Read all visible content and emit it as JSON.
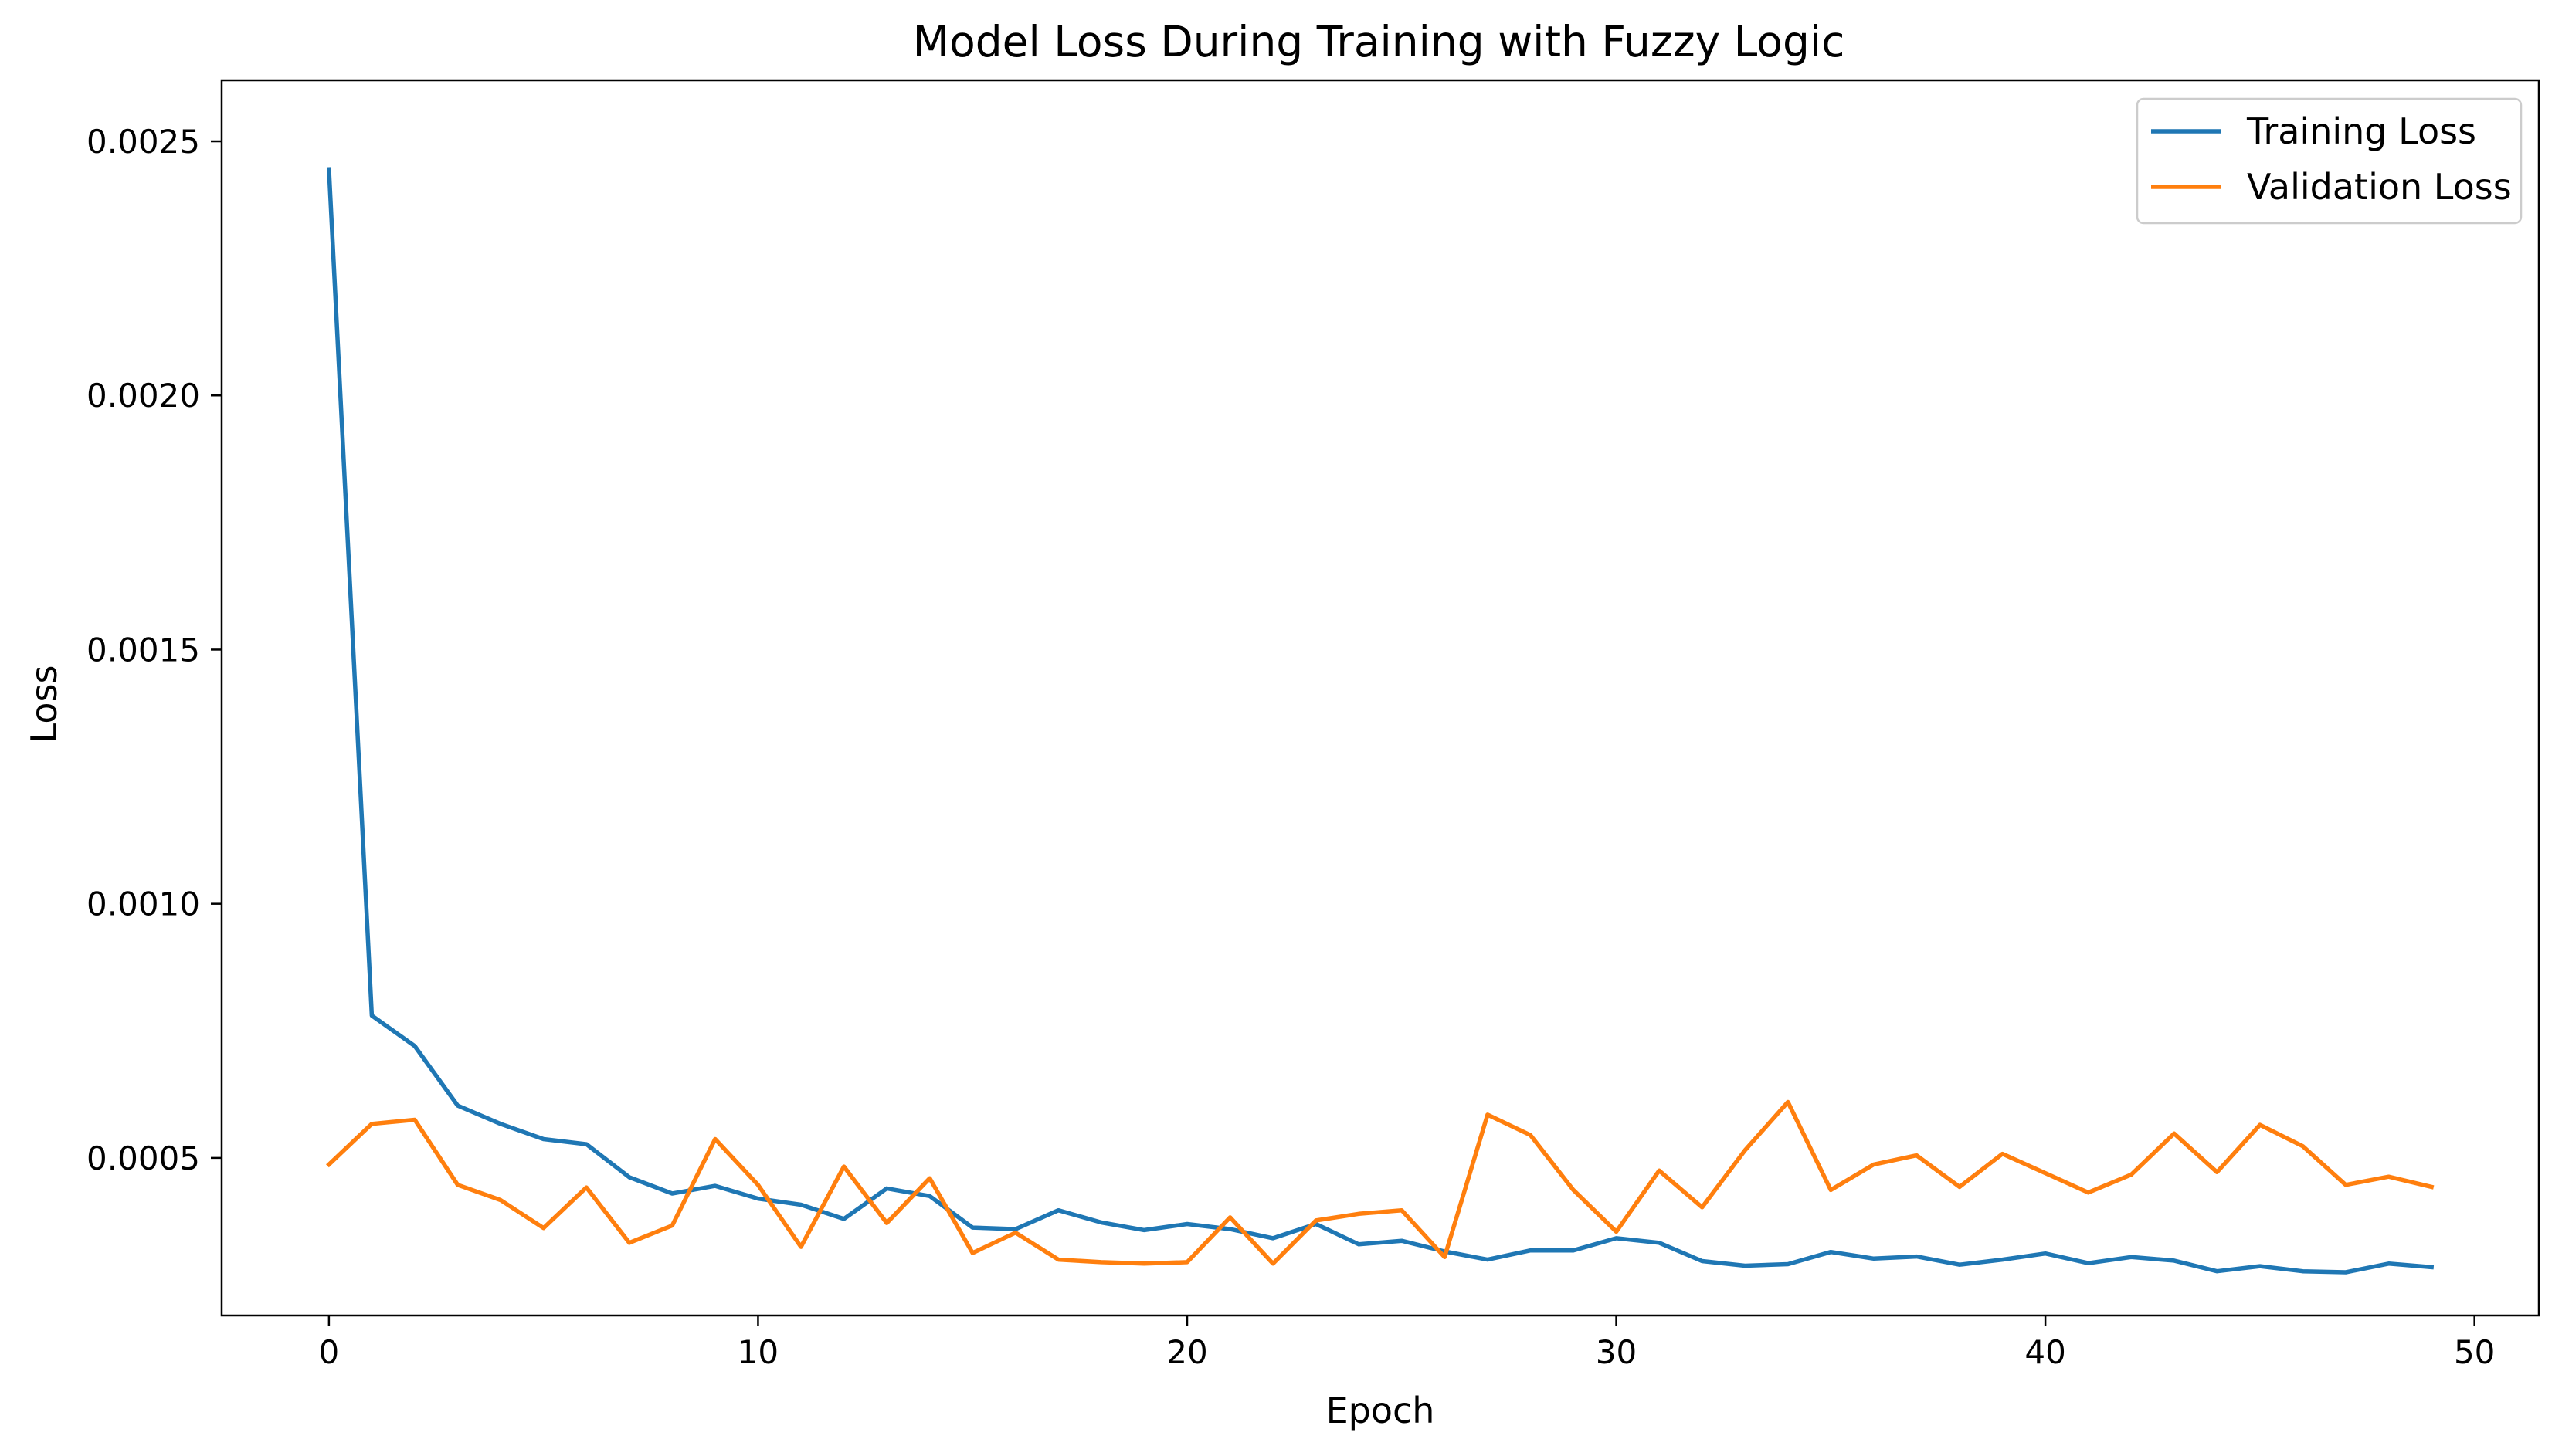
{
  "chart_data": {
    "type": "line",
    "title": "Model Loss During Training with Fuzzy Logic",
    "xlabel": "Epoch",
    "ylabel": "Loss",
    "xlim": [
      -2.5,
      51.5
    ],
    "ylim": [
      0.00019,
      0.00262
    ],
    "xticks": [
      0,
      10,
      20,
      30,
      40,
      50
    ],
    "yticks": [
      "0.0005",
      "0.0010",
      "0.0015",
      "0.0020",
      "0.0025"
    ],
    "grid": false,
    "legend_position": "top-right",
    "x": [
      0,
      1,
      2,
      3,
      4,
      5,
      6,
      7,
      8,
      9,
      10,
      11,
      12,
      13,
      14,
      15,
      16,
      17,
      18,
      19,
      20,
      21,
      22,
      23,
      24,
      25,
      26,
      27,
      28,
      29,
      30,
      31,
      32,
      33,
      34,
      35,
      36,
      37,
      38,
      39,
      40,
      41,
      42,
      43,
      44,
      45,
      46,
      47,
      48,
      49
    ],
    "series": [
      {
        "name": "Training Loss",
        "color": "#1f77b4",
        "values": [
          0.002445,
          0.00078,
          0.00072,
          0.000603,
          0.000567,
          0.000537,
          0.000527,
          0.000462,
          0.00043,
          0.000445,
          0.00042,
          0.000408,
          0.00038,
          0.00044,
          0.000425,
          0.000363,
          0.00036,
          0.000397,
          0.000373,
          0.000358,
          0.00037,
          0.00036,
          0.000342,
          0.00037,
          0.00033,
          0.000337,
          0.000316,
          0.0003,
          0.000318,
          0.000318,
          0.000342,
          0.000333,
          0.000297,
          0.000288,
          0.000291,
          0.000315,
          0.000302,
          0.000306,
          0.00029,
          0.0003,
          0.000312,
          0.000293,
          0.000305,
          0.000298,
          0.000277,
          0.000287,
          0.000277,
          0.000275,
          0.000292,
          0.000285
        ]
      },
      {
        "name": "Validation Loss",
        "color": "#ff7f0e",
        "values": [
          0.000487,
          0.000567,
          0.000575,
          0.000447,
          0.000417,
          0.000362,
          0.000442,
          0.000333,
          0.000367,
          0.000537,
          0.000447,
          0.000325,
          0.000483,
          0.000372,
          0.00046,
          0.000313,
          0.000353,
          0.0003,
          0.000295,
          0.000292,
          0.000295,
          0.000383,
          0.000292,
          0.000377,
          0.00039,
          0.000397,
          0.000305,
          0.000585,
          0.000545,
          0.000437,
          0.000355,
          0.000475,
          0.000403,
          0.000515,
          0.00061,
          0.000437,
          0.000487,
          0.000505,
          0.000443,
          0.000508,
          0.00047,
          0.000432,
          0.000467,
          0.000548,
          0.000472,
          0.000565,
          0.000523,
          0.000447,
          0.000463,
          0.000443
        ]
      }
    ]
  }
}
